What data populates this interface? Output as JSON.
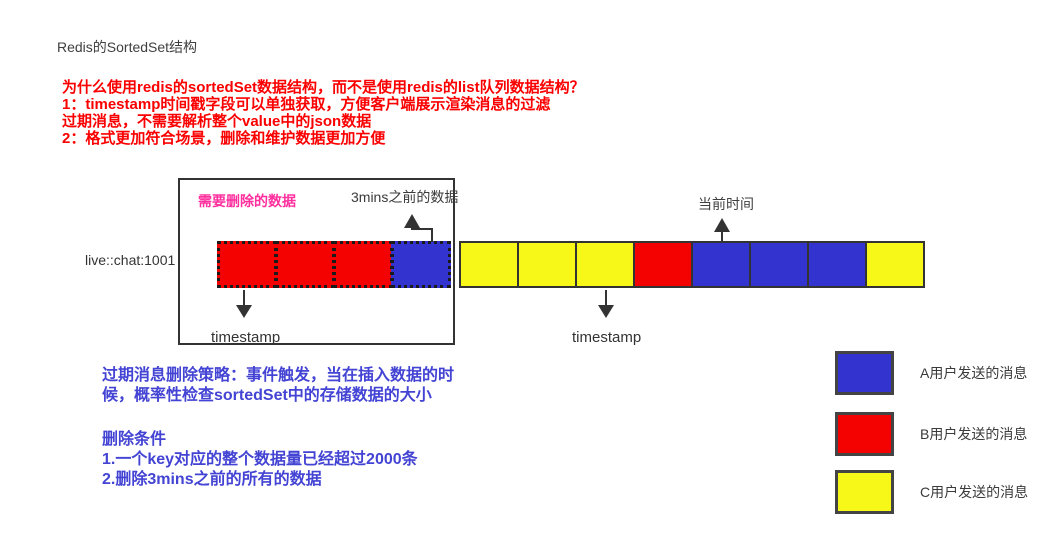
{
  "title": "Redis的SortedSet结构",
  "why_block": {
    "lines": [
      "为什么使用redis的sortedSet数据结构，而不是使用redis的list队列数据结构？",
      "1：timestamp时间戳字段可以单独获取，方便客户端展示渲染消息的过滤",
      "过期消息，不需要解析整个value中的json数据",
      "2：格式更加符合场景，删除和维护数据更加方便"
    ]
  },
  "diagram": {
    "key_label": "live::chat:1001",
    "delete_label": "需要删除的数据",
    "before_3mins_label": "3mins之前的数据",
    "current_time_label": "当前时间",
    "timestamp_label_left": "timestamp",
    "timestamp_label_right": "timestamp",
    "dashed_cells": [
      "red",
      "red",
      "red",
      "blue"
    ],
    "solid_cells": [
      "yellow",
      "yellow",
      "yellow",
      "red",
      "blue",
      "blue",
      "blue",
      "yellow"
    ]
  },
  "policy_block": {
    "para1_lines": [
      "过期消息删除策略：事件触发，当在插入数据的时",
      "候，概率性检查sortedSet中的存储数据的大小"
    ],
    "para2_lines": [
      "删除条件",
      "1.一个key对应的整个数据量已经超过2000条",
      "2.删除3mins之前的所有的数据"
    ]
  },
  "legend": [
    {
      "color": "blue",
      "label": "A用户发送的消息"
    },
    {
      "color": "red",
      "label": "B用户发送的消息"
    },
    {
      "color": "yellow",
      "label": "C用户发送的消息"
    }
  ],
  "colors": {
    "message_red": "#f40101",
    "message_blue": "#3333cf",
    "message_yellow": "#f8f818",
    "note_red_text": "#fb0000",
    "note_pink_text": "#ff2f9e",
    "policy_blue_text": "#4343d4",
    "line_dark": "#333333"
  }
}
